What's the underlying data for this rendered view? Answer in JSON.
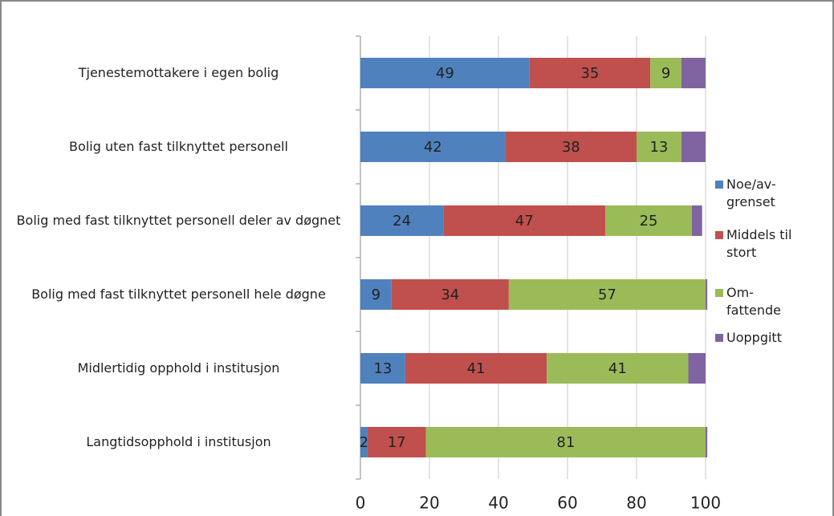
{
  "chart_data": {
    "type": "stacked_barh",
    "categories": [
      "Tjenestemottakere i egen bolig",
      "Bolig uten fast tilknyttet personell",
      "Bolig med fast tilknyttet personell deler av døgnet",
      "Bolig med fast tilknyttet personell hele døgne",
      "Midlertidig opphold i institusjon",
      "Langtidsopphold i institusjon"
    ],
    "series": [
      {
        "name": "Noe/av- grenset",
        "color": "#4f81bd",
        "values": [
          49,
          42,
          24,
          9,
          13,
          2
        ]
      },
      {
        "name": "Middels til stort",
        "color": "#c0504d",
        "values": [
          35,
          38,
          47,
          34,
          41,
          17
        ]
      },
      {
        "name": "Om- fattende",
        "color": "#9bbb59",
        "values": [
          9,
          13,
          25,
          57,
          41,
          81
        ]
      },
      {
        "name": "Uoppgitt",
        "color": "#8064a2",
        "values": [
          7,
          7,
          3,
          0.5,
          5,
          0.5
        ]
      }
    ],
    "xlim": [
      0,
      100
    ],
    "xticks": [
      0,
      20,
      40,
      60,
      80,
      100
    ],
    "grid": true,
    "legend": "right",
    "data_labels": [
      "Noe/av- grenset",
      "Middels til stort",
      "Om- fattende"
    ]
  }
}
